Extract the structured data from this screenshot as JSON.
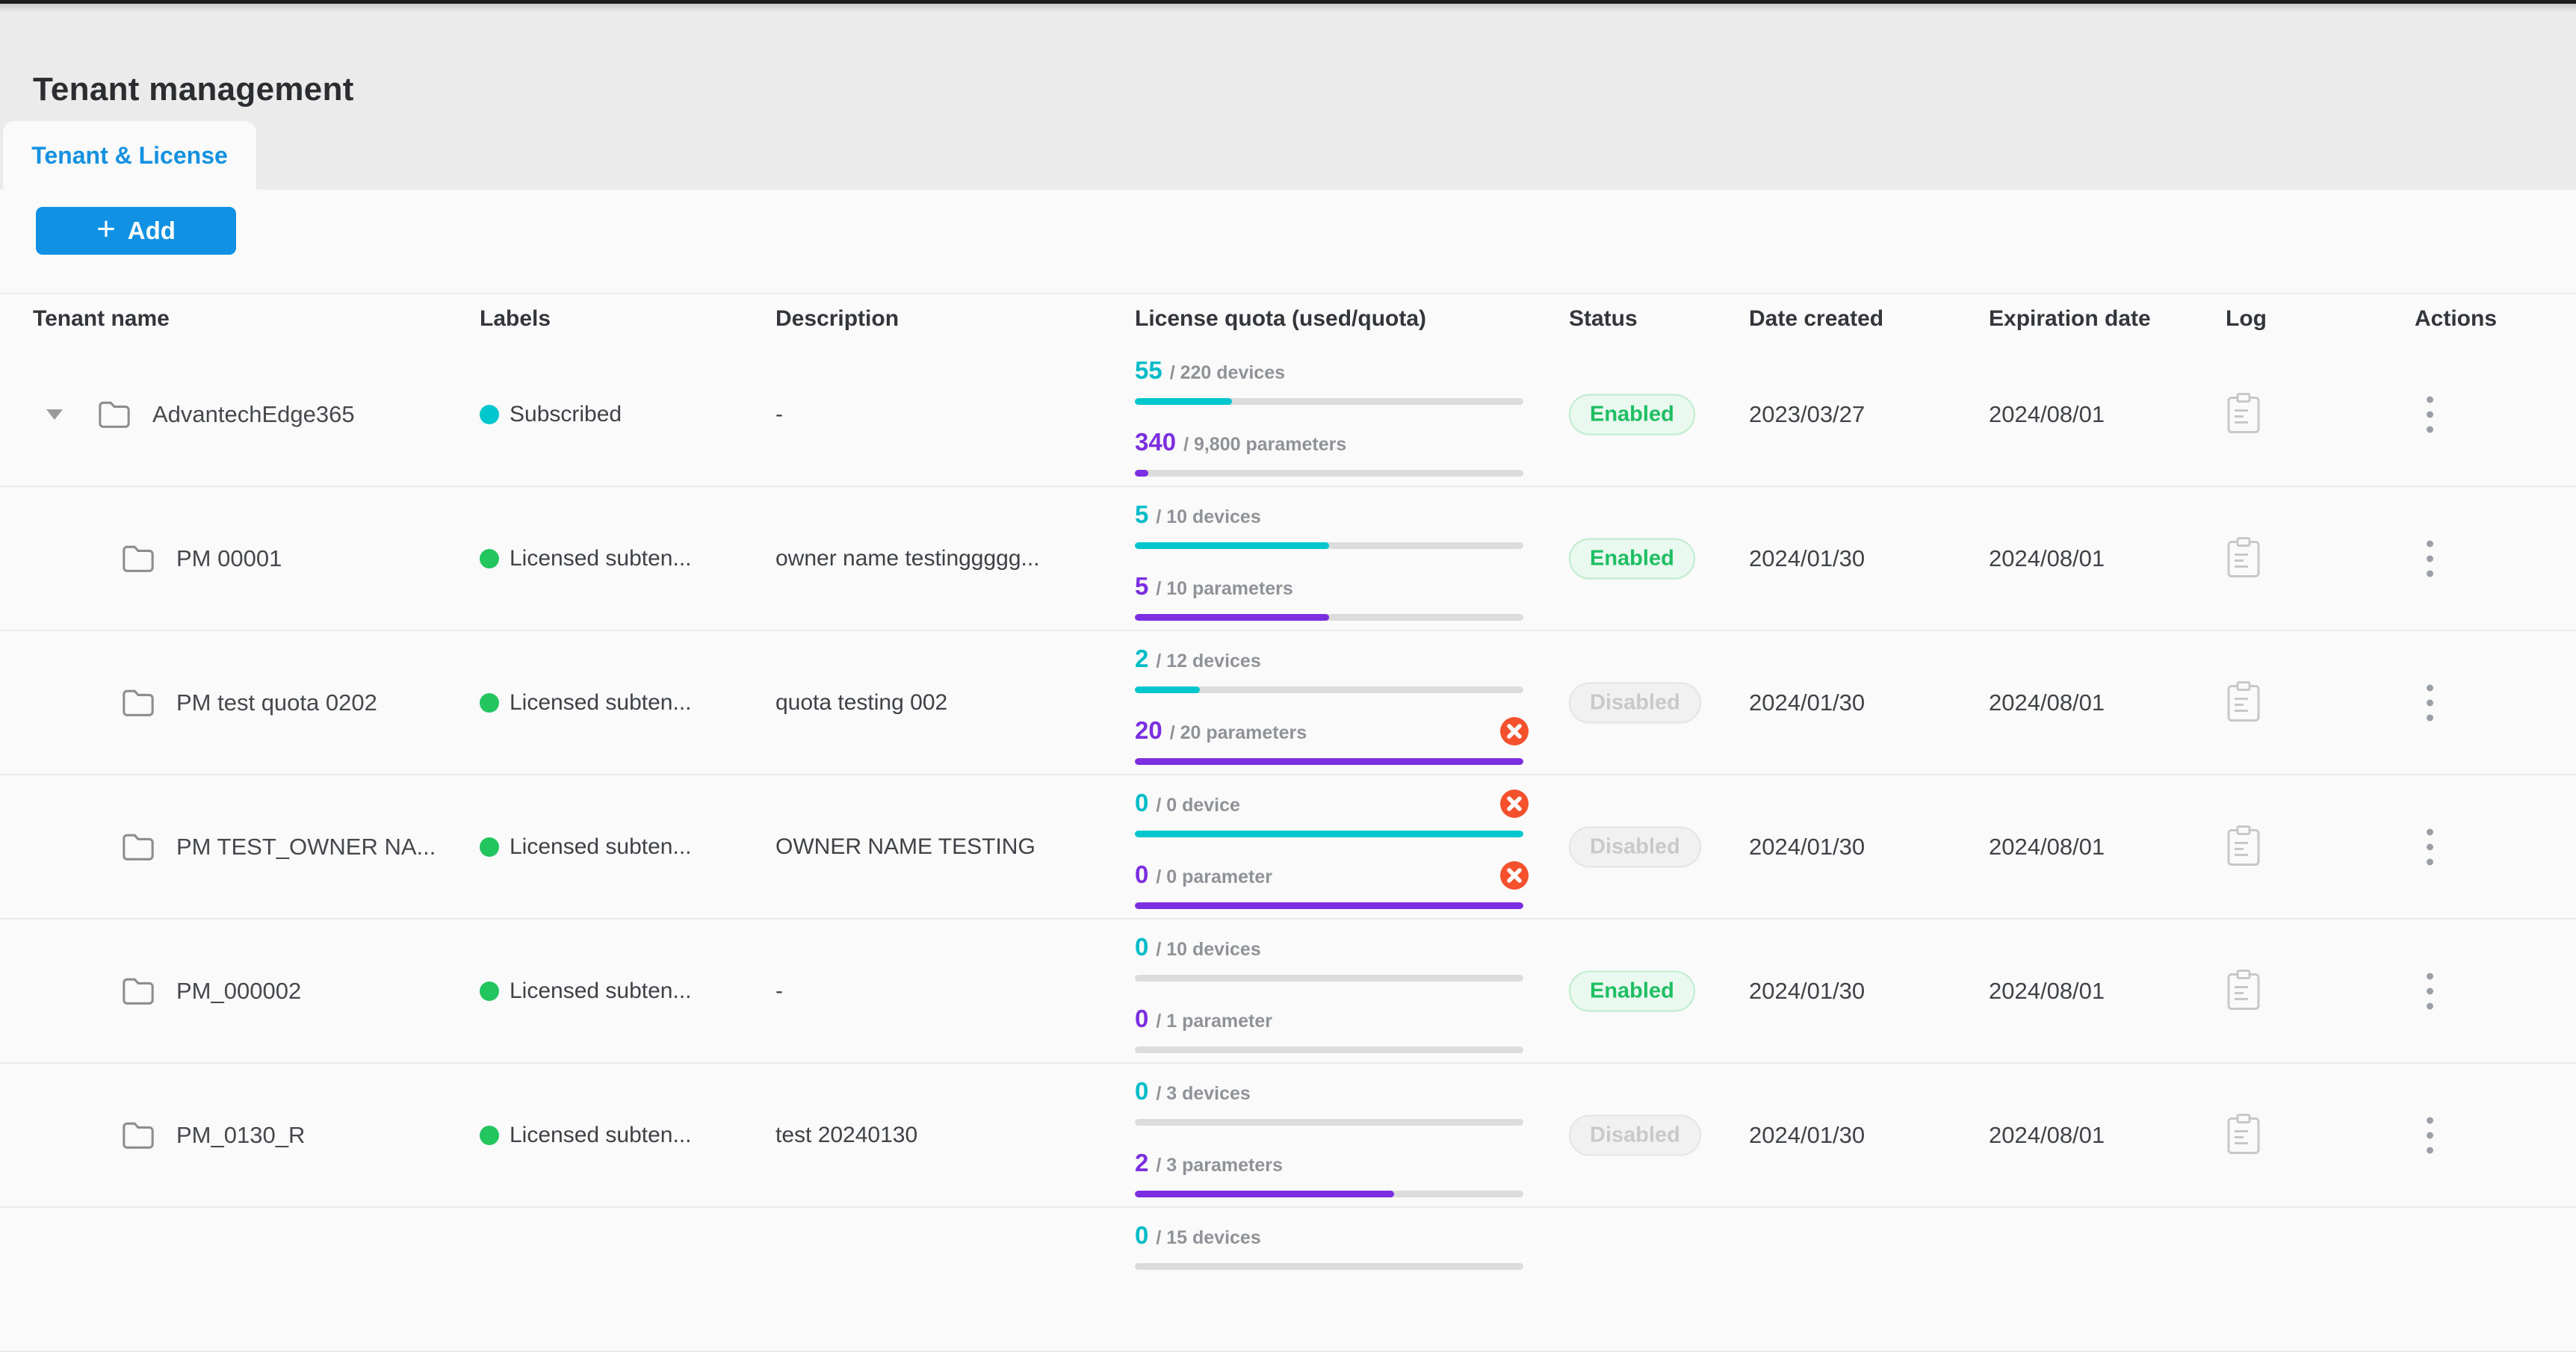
{
  "page": {
    "title": "Tenant management"
  },
  "tabs": {
    "tenant_license": "Tenant & License"
  },
  "toolbar": {
    "add_label": "Add",
    "add_plus": "+"
  },
  "colors": {
    "accent_blue": "#1191e4",
    "tab_blue": "#1591e1",
    "teal": "#00c6ce",
    "purple": "#7b2fe0",
    "label_green": "#22c55e",
    "label_teal": "#00c6ce",
    "enabled_green": "#1dbf62",
    "disabled_gray": "#c9c9c9",
    "error_red": "#f5512d"
  },
  "table": {
    "columns": [
      "Tenant name",
      "Labels",
      "Description",
      "License quota (used/quota)",
      "Status",
      "Date created",
      "Expiration date",
      "Log",
      "Actions"
    ],
    "rows": [
      {
        "name": "AdvantechEdge365",
        "label": {
          "text": "Subscribed",
          "color": "#00c6ce"
        },
        "description": "-",
        "devices": {
          "used": "55",
          "quota_text": "/ 220 devices",
          "pct": 25,
          "error": false
        },
        "parameters": {
          "used": "340",
          "quota_text": "/ 9,800 parameters",
          "pct": 3.5,
          "error": false
        },
        "status": "Enabled",
        "date_created": "2023/03/27",
        "expiration_date": "2024/08/01"
      },
      {
        "name": "PM 00001",
        "label": {
          "text": "Licensed subten...",
          "color": "#22c55e"
        },
        "description": "owner name testinggggg...",
        "devices": {
          "used": "5",
          "quota_text": "/ 10 devices",
          "pct": 50,
          "error": false
        },
        "parameters": {
          "used": "5",
          "quota_text": "/ 10 parameters",
          "pct": 50,
          "error": false
        },
        "status": "Enabled",
        "date_created": "2024/01/30",
        "expiration_date": "2024/08/01"
      },
      {
        "name": "PM test quota 0202",
        "label": {
          "text": "Licensed subten...",
          "color": "#22c55e"
        },
        "description": "quota testing 002",
        "devices": {
          "used": "2",
          "quota_text": "/ 12 devices",
          "pct": 16.7,
          "error": false
        },
        "parameters": {
          "used": "20",
          "quota_text": "/ 20 parameters",
          "pct": 100,
          "error": true
        },
        "status": "Disabled",
        "date_created": "2024/01/30",
        "expiration_date": "2024/08/01"
      },
      {
        "name": "PM TEST_OWNER NA...",
        "label": {
          "text": "Licensed subten...",
          "color": "#22c55e"
        },
        "description": "OWNER NAME TESTING",
        "devices": {
          "used": "0",
          "quota_text": "/ 0 device",
          "pct": 100,
          "error": true
        },
        "parameters": {
          "used": "0",
          "quota_text": "/ 0 parameter",
          "pct": 100,
          "error": true
        },
        "status": "Disabled",
        "date_created": "2024/01/30",
        "expiration_date": "2024/08/01"
      },
      {
        "name": "PM_000002",
        "label": {
          "text": "Licensed subten...",
          "color": "#22c55e"
        },
        "description": "-",
        "devices": {
          "used": "0",
          "quota_text": "/ 10 devices",
          "pct": 0,
          "error": false
        },
        "parameters": {
          "used": "0",
          "quota_text": "/ 1 parameter",
          "pct": 0,
          "error": false
        },
        "status": "Enabled",
        "date_created": "2024/01/30",
        "expiration_date": "2024/08/01"
      },
      {
        "name": "PM_0130_R",
        "label": {
          "text": "Licensed subten...",
          "color": "#22c55e"
        },
        "description": "test 20240130",
        "devices": {
          "used": "0",
          "quota_text": "/ 3 devices",
          "pct": 0,
          "error": false
        },
        "parameters": {
          "used": "2",
          "quota_text": "/ 3 parameters",
          "pct": 66.7,
          "error": false
        },
        "status": "Disabled",
        "date_created": "2024/01/30",
        "expiration_date": "2024/08/01"
      },
      {
        "devices": {
          "used": "0",
          "quota_text": "/ 15 devices",
          "pct": 0,
          "error": false
        }
      }
    ]
  }
}
